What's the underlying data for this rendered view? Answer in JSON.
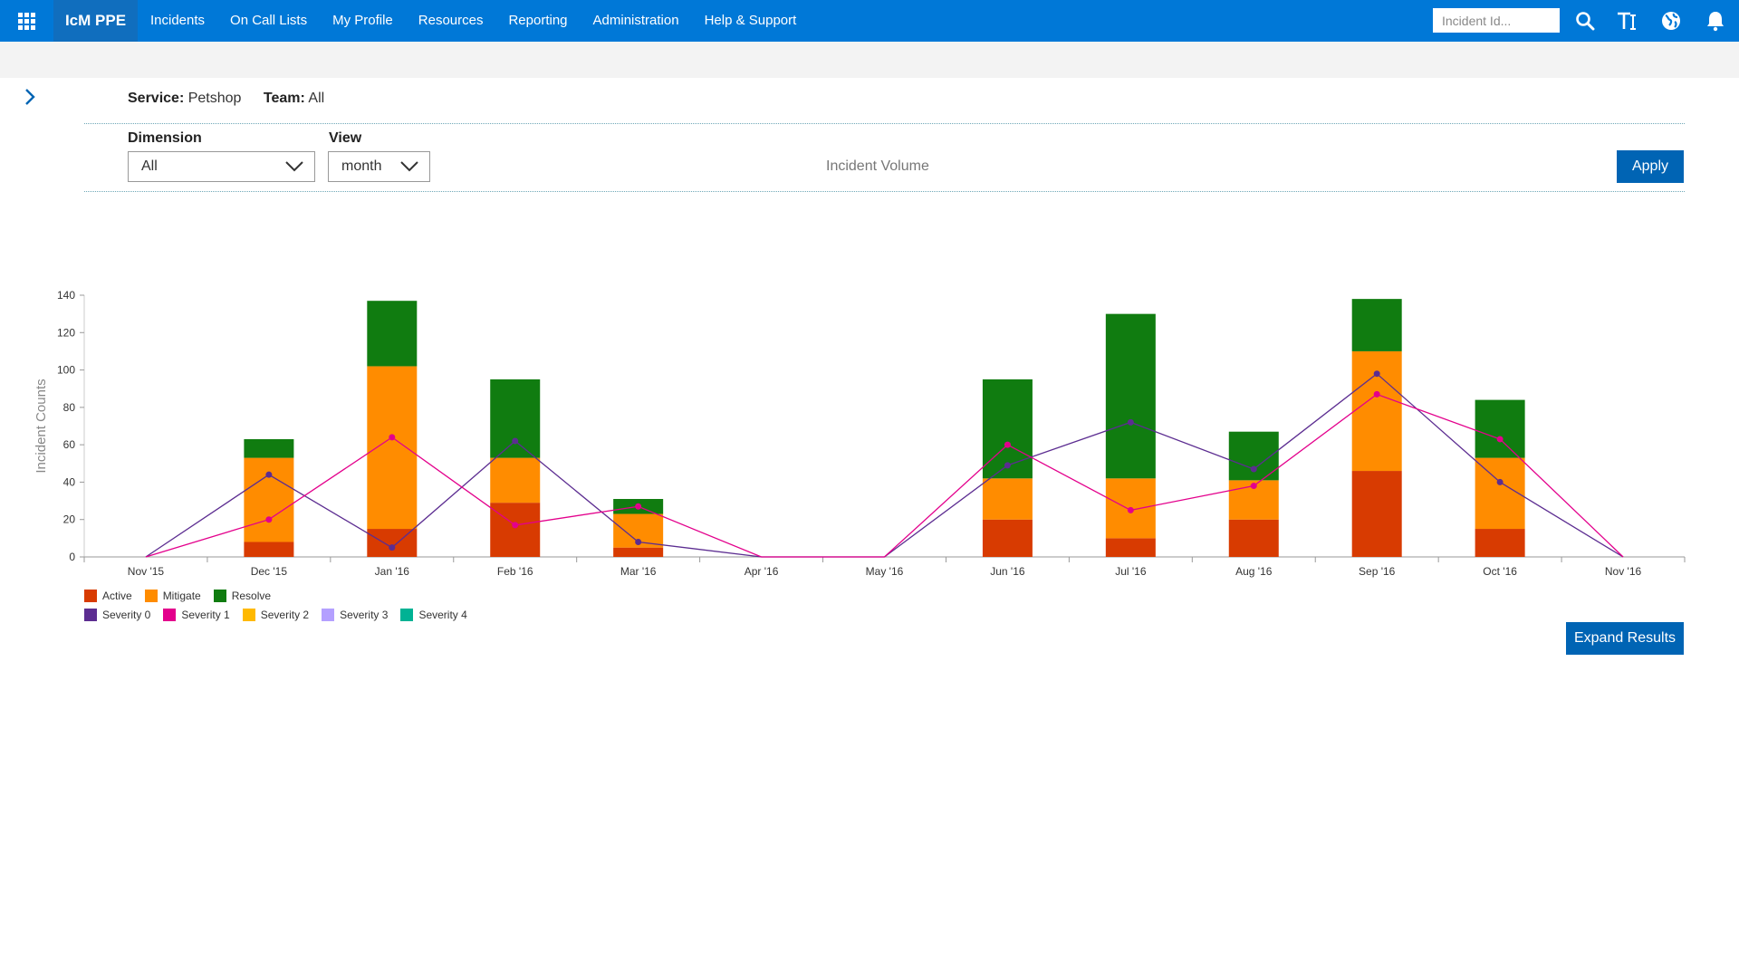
{
  "app": {
    "name": "IcM PPE"
  },
  "nav": {
    "items": [
      {
        "label": "Incidents"
      },
      {
        "label": "On Call Lists"
      },
      {
        "label": "My Profile"
      },
      {
        "label": "Resources"
      },
      {
        "label": "Reporting"
      },
      {
        "label": "Administration"
      },
      {
        "label": "Help & Support"
      }
    ],
    "search_placeholder": "Incident Id...",
    "icons": [
      "search-icon",
      "text-size-icon",
      "globe-icon",
      "bell-icon"
    ]
  },
  "context": {
    "service_label": "Service:",
    "service_value": "Petshop",
    "team_label": "Team:",
    "team_value": "All"
  },
  "filters": {
    "dimension_label": "Dimension",
    "dimension_value": "All",
    "view_label": "View",
    "view_value": "month",
    "metric_label": "Incident Volume",
    "apply_label": "Apply"
  },
  "expand_label": "Expand Results",
  "colors": {
    "accent": "#0078d7",
    "brand_bg": "#106ebe",
    "button": "#0064b4",
    "active": "#d83b01",
    "mitigate": "#ff8c00",
    "resolve": "#107c10",
    "sev0": "#5c2d91",
    "sev1": "#e3008c",
    "sev2": "#ffb900",
    "sev3": "#b4a0ff",
    "sev4": "#00b294"
  },
  "chart_data": {
    "type": "bar",
    "stacked": true,
    "ylabel": "Incident Counts",
    "ylim": [
      0,
      140
    ],
    "yticks": [
      0,
      20,
      40,
      60,
      80,
      100,
      120,
      140
    ],
    "categories": [
      "Nov '15",
      "Dec '15",
      "Jan '16",
      "Feb '16",
      "Mar '16",
      "Apr '16",
      "May '16",
      "Jun '16",
      "Jul '16",
      "Aug '16",
      "Sep '16",
      "Oct '16",
      "Nov '16"
    ],
    "series": [
      {
        "name": "Active",
        "color": "#d83b01",
        "values": [
          0,
          8,
          15,
          29,
          5,
          0,
          0,
          20,
          10,
          20,
          46,
          15,
          0
        ]
      },
      {
        "name": "Mitigate",
        "color": "#ff8c00",
        "values": [
          0,
          45,
          87,
          24,
          18,
          0,
          0,
          22,
          32,
          21,
          64,
          38,
          0
        ]
      },
      {
        "name": "Resolve",
        "color": "#107c10",
        "values": [
          0,
          10,
          35,
          42,
          8,
          0,
          0,
          53,
          88,
          26,
          28,
          31,
          0
        ]
      }
    ],
    "lines": [
      {
        "name": "Severity 0",
        "color": "#5c2d91",
        "values": [
          0,
          44,
          5,
          62,
          8,
          0,
          0,
          49,
          72,
          47,
          98,
          40,
          0
        ]
      },
      {
        "name": "Severity 1",
        "color": "#e3008c",
        "values": [
          0,
          20,
          64,
          17,
          27,
          0,
          0,
          60,
          25,
          38,
          87,
          63,
          0
        ]
      },
      {
        "name": "Severity 2",
        "color": "#ffb900",
        "values": []
      },
      {
        "name": "Severity 3",
        "color": "#b4a0ff",
        "values": []
      },
      {
        "name": "Severity 4",
        "color": "#00b294",
        "values": []
      }
    ],
    "legend_placement": "bottom-left",
    "grid": false
  }
}
